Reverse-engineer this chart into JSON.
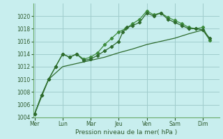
{
  "xlabel": "Pression niveau de la mer( hPa )",
  "background_color": "#c8eeee",
  "grid_color": "#a0cccc",
  "line_dark": "#2d6a2d",
  "line_light": "#3d8c3d",
  "ylim": [
    1004,
    1022
  ],
  "yticks": [
    1004,
    1006,
    1008,
    1010,
    1012,
    1014,
    1016,
    1018,
    1020
  ],
  "day_labels": [
    "Mer",
    "Lun",
    "Mar",
    "Jeu",
    "Ven",
    "Sam",
    "Dim"
  ],
  "day_positions": [
    0,
    2,
    4,
    6,
    8,
    10,
    12
  ],
  "xlim": [
    -0.1,
    13.2
  ],
  "s1_x": [
    0,
    0.5,
    1.0,
    1.5,
    2.0,
    2.5,
    3.0,
    3.5,
    4.0,
    4.5,
    5.0,
    5.5,
    6.0,
    6.3,
    6.6,
    7.0,
    7.5,
    8.0,
    8.5,
    9.0,
    9.5,
    10.0,
    10.5,
    11.0,
    11.5,
    12.0,
    12.5
  ],
  "s1_y": [
    1004.5,
    1007.5,
    1010.0,
    1012.0,
    1014.0,
    1013.5,
    1014.0,
    1013.0,
    1013.2,
    1013.8,
    1014.5,
    1015.2,
    1016.0,
    1017.5,
    1018.2,
    1018.5,
    1019.0,
    1020.5,
    1020.0,
    1020.5,
    1019.5,
    1019.0,
    1018.5,
    1018.0,
    1018.0,
    1017.8,
    1016.5
  ],
  "s2_x": [
    0,
    0.5,
    1.0,
    1.5,
    2.0,
    2.5,
    3.0,
    3.5,
    4.0,
    4.5,
    5.0,
    5.5,
    6.0,
    6.5,
    7.0,
    7.5,
    8.0,
    8.5,
    9.0,
    9.5,
    10.0,
    10.5,
    11.0,
    11.5,
    12.0,
    12.5
  ],
  "s2_y": [
    1004.5,
    1007.5,
    1010.0,
    1012.0,
    1014.0,
    1013.5,
    1014.0,
    1013.2,
    1013.5,
    1014.2,
    1015.5,
    1016.5,
    1017.5,
    1018.0,
    1018.8,
    1019.5,
    1020.8,
    1020.2,
    1020.5,
    1019.8,
    1019.3,
    1018.8,
    1018.2,
    1018.0,
    1018.2,
    1016.2
  ],
  "s3_x": [
    0,
    1.0,
    2.0,
    3.0,
    4.0,
    5.0,
    6.0,
    7.0,
    8.0,
    9.0,
    10.0,
    11.0,
    12.0,
    12.5
  ],
  "s3_y": [
    1004.5,
    1010.0,
    1012.0,
    1012.5,
    1013.0,
    1013.5,
    1014.2,
    1014.8,
    1015.5,
    1016.0,
    1016.5,
    1017.2,
    1017.8,
    1016.2
  ]
}
